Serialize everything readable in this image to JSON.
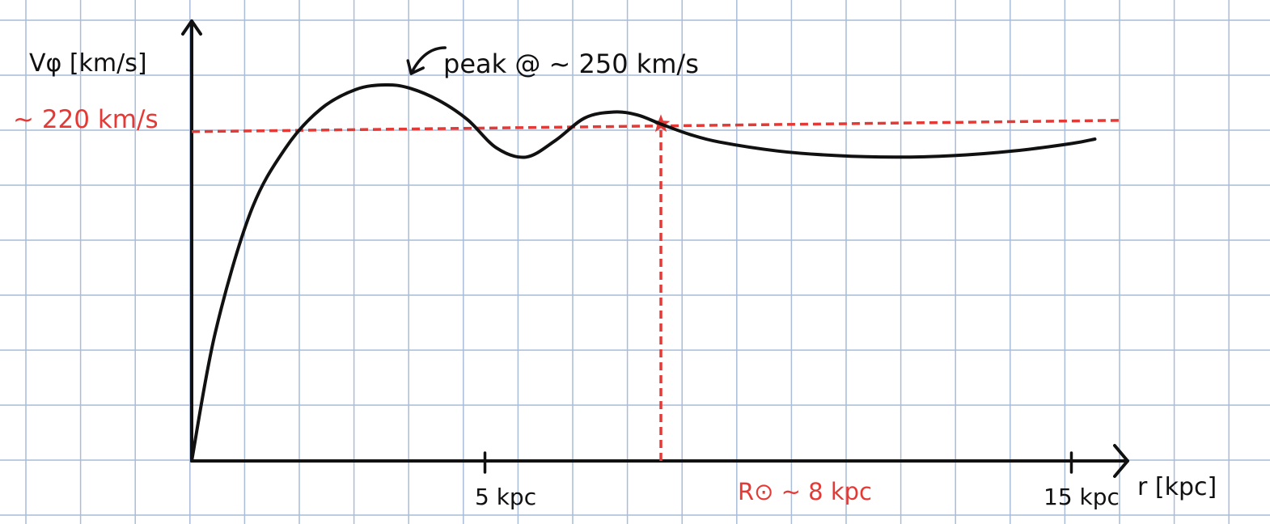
{
  "chart_data": {
    "type": "line",
    "xlabel": "r [kpc]",
    "ylabel": "Vφ [km/s]",
    "x_ticks": [
      {
        "x": 5,
        "label": "5 kpc"
      },
      {
        "x": 15,
        "label": "15 kpc"
      }
    ],
    "xlim": [
      0,
      16
    ],
    "ylim": [
      0,
      280
    ],
    "grid": true,
    "series": [
      {
        "x": [
          0,
          0.4,
          1,
          1.6,
          2.2,
          2.8,
          3.3,
          3.7,
          4.2,
          4.7,
          5.2,
          5.7,
          6.2,
          6.7,
          7.2,
          7.6,
          8.0,
          8.5,
          9.0,
          10.0,
          11.0,
          12.0,
          13.0,
          14.0,
          15.0,
          15.4
        ],
        "y": [
          0,
          85,
          165,
          208,
          234,
          247,
          250,
          248,
          240,
          227,
          208,
          202,
          213,
          228,
          232,
          230,
          224,
          217,
          212,
          206,
          203,
          202,
          203,
          206,
          211,
          214
        ]
      }
    ],
    "reference": {
      "velocity": 220,
      "velocity_label": "~ 220 km/s",
      "r0": 8,
      "r0_label": "R⊙ ~ 8 kpc"
    },
    "annotations": [
      {
        "text": "peak @ ~ 250 km/s",
        "x": 3.7,
        "y": 250
      }
    ]
  },
  "colors": {
    "curve": "#111111",
    "reference": "#e53935",
    "grid": "#a9bcd8",
    "axis": "#111111"
  }
}
